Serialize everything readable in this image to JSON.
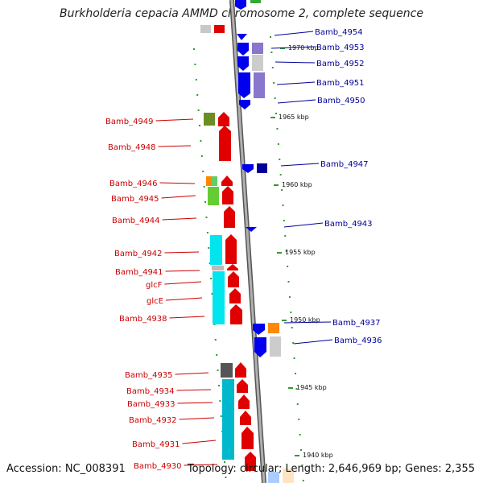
{
  "title": "Burkholderia cepacia AMMD chromosome 2, complete sequence",
  "footer": {
    "accession": "Accession: NC_008391",
    "topology": "Topology: circular; Length: 2,646,969 bp; Genes: 2,355"
  },
  "colors": {
    "backbone": "#888888",
    "forward_gene": "#ff0000",
    "reverse_gene": "#0000ff",
    "left_label": "#cc0000",
    "right_label": "#000099",
    "tick": "#339933"
  },
  "ruler": [
    {
      "label": "1970 kbp"
    },
    {
      "label": "1965 kbp"
    },
    {
      "label": "1960 kbp"
    },
    {
      "label": "1955 kbp"
    },
    {
      "label": "1950 kbp"
    },
    {
      "label": "1945 kbp"
    },
    {
      "label": "1940 kbp"
    }
  ],
  "left_labels": [
    {
      "text": "Bamb_4949"
    },
    {
      "text": "Bamb_4948"
    },
    {
      "text": "Bamb_4946"
    },
    {
      "text": "Bamb_4945"
    },
    {
      "text": "Bamb_4944"
    },
    {
      "text": "Bamb_4942"
    },
    {
      "text": "Bamb_4941"
    },
    {
      "text": "glcF"
    },
    {
      "text": "glcE"
    },
    {
      "text": "Bamb_4938"
    },
    {
      "text": "Bamb_4935"
    },
    {
      "text": "Bamb_4934"
    },
    {
      "text": "Bamb_4933"
    },
    {
      "text": "Bamb_4932"
    },
    {
      "text": "Bamb_4931"
    },
    {
      "text": "Bamb_4930"
    }
  ],
  "right_labels": [
    {
      "text": "Bamb_4954"
    },
    {
      "text": "Bamb_4953"
    },
    {
      "text": "Bamb_4952"
    },
    {
      "text": "Bamb_4951"
    },
    {
      "text": "Bamb_4950"
    },
    {
      "text": "Bamb_4947"
    },
    {
      "text": "Bamb_4943"
    },
    {
      "text": "Bamb_4937"
    },
    {
      "text": "Bamb_4936"
    }
  ]
}
